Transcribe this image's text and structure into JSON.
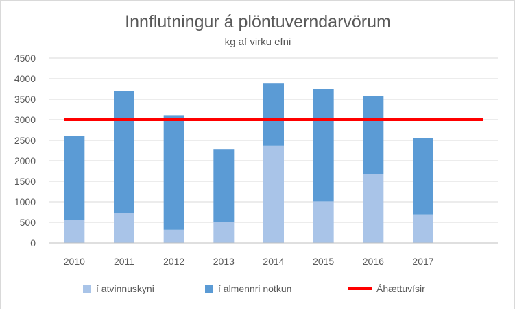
{
  "chart_data": {
    "type": "bar",
    "stacked": true,
    "title": "Innflutningur á plöntuverndarvörum",
    "subtitle": "kg af virku efni",
    "xlabel": "",
    "ylabel": "",
    "categories": [
      "2010",
      "2011",
      "2012",
      "2013",
      "2014",
      "2015",
      "2016",
      "2017"
    ],
    "ylim": [
      0,
      4500
    ],
    "yticks": [
      "0",
      "500",
      "1000",
      "1500",
      "2000",
      "2500",
      "3000",
      "3500",
      "4000",
      "4500"
    ],
    "grid": true,
    "legend_position": "bottom",
    "series": [
      {
        "name": "í atvinnuskyni",
        "color": "#a9c4e8",
        "values": [
          550,
          730,
          320,
          510,
          2370,
          1010,
          1670,
          690
        ]
      },
      {
        "name": "í almennri notkun",
        "color": "#5b9bd5",
        "values": [
          2050,
          2970,
          2790,
          1770,
          1510,
          2740,
          1900,
          1860
        ]
      }
    ],
    "reference_line": {
      "name": "Áhættuvísir",
      "value": 3000,
      "color": "#ff0000"
    }
  }
}
